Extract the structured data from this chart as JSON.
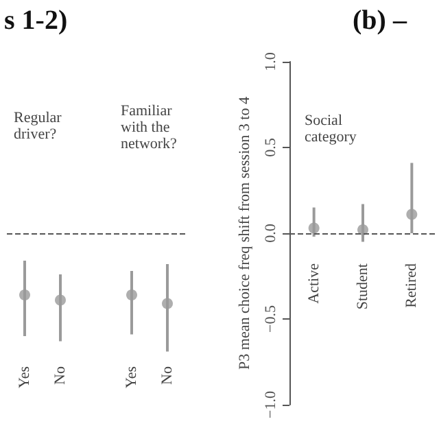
{
  "chart_data": [
    {
      "type": "scatter",
      "title": "s 1-2)",
      "ylim": [
        -1,
        1
      ],
      "categories": [
        "Yes",
        "No",
        null,
        "Yes",
        "No"
      ],
      "series": [
        {
          "color": "#9a9a9a",
          "values": [
            -0.36,
            -0.39,
            null,
            -0.36,
            -0.41
          ],
          "errors": [
            [
              -0.6,
              -0.16
            ],
            [
              -0.63,
              -0.24
            ],
            null,
            [
              -0.59,
              -0.22
            ],
            [
              -0.69,
              -0.18
            ]
          ]
        }
      ],
      "annotations": [
        "Regular driver?",
        "Familiar with the network?"
      ],
      "ref_lines": [
        {
          "axis": "y",
          "value": 0,
          "color": "#555555",
          "line_style": "dashed"
        }
      ],
      "marker": "circle",
      "grid": false,
      "legend": false,
      "tick_labels": "x"
    },
    {
      "type": "scatter",
      "title": "(b) –",
      "ylabel": "P3 mean choice freq shift from session 3 to 4",
      "categories": [
        "Active",
        "Student",
        "Retired"
      ],
      "series": [
        {
          "color": "#9a9a9a",
          "values": [
            0.03,
            0.02,
            0.11
          ],
          "errors": [
            [
              -0.02,
              0.15
            ],
            [
              -0.05,
              0.17
            ],
            [
              0,
              0.41
            ]
          ]
        }
      ],
      "annotations": [
        "Social category"
      ],
      "ylim": [
        -1,
        1
      ],
      "yticks": [
        {
          "value": -1,
          "label": "−1.0"
        },
        {
          "value": -0.5,
          "label": "−0.5"
        },
        {
          "value": 0,
          "label": "0.0"
        },
        {
          "value": 0.5,
          "label": "0.5"
        },
        {
          "value": 1,
          "label": "1.0"
        }
      ],
      "ref_lines": [
        {
          "axis": "y",
          "value": 0,
          "color": "#555555",
          "line_style": "dashed"
        }
      ],
      "marker": "circle",
      "grid": false,
      "legend": false
    }
  ]
}
